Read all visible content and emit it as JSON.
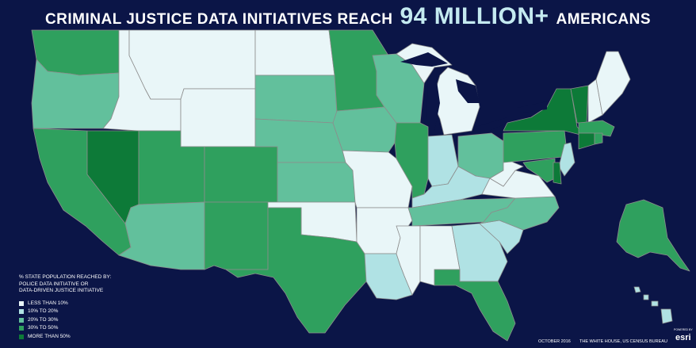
{
  "title": {
    "before": "CRIMINAL JUSTICE DATA INITIATIVES REACH",
    "highlight": "94 MILLION+",
    "after": "AMERICANS"
  },
  "legend": {
    "heading": [
      "% STATE POPULATION REACHED BY:",
      "POLICE DATA INITIATIVE OR",
      "DATA-DRIVEN JUSTICE INITIATIVE"
    ],
    "items": [
      {
        "label": "LESS THAN 10%",
        "color": "#e9f6f8"
      },
      {
        "label": "10% TO 20%",
        "color": "#b0e2e4"
      },
      {
        "label": "20% TO 30%",
        "color": "#62c09c"
      },
      {
        "label": "30% TO 50%",
        "color": "#2fa05e"
      },
      {
        "label": "MORE THAN 50%",
        "color": "#0d7a38"
      }
    ]
  },
  "footer": {
    "date": "OCTOBER 2016",
    "source": "THE WHITE HOUSE, US CENSUS BUREAU",
    "logo_small": "POWERED BY",
    "logo": "esri"
  },
  "colors": {
    "background": "#0b1547",
    "border": "#8c8c8c"
  },
  "map_data": {
    "type": "choropleth",
    "categories": [
      "LESS THAN 10%",
      "10% TO 20%",
      "20% TO 30%",
      "30% TO 50%",
      "MORE THAN 50%"
    ],
    "states": {
      "WA": 3,
      "OR": 2,
      "CA": 3,
      "NV": 4,
      "ID": 0,
      "MT": 0,
      "WY": 0,
      "UT": 3,
      "AZ": 2,
      "CO": 3,
      "NM": 3,
      "ND": 0,
      "SD": 2,
      "NE": 2,
      "KS": 2,
      "OK": 0,
      "TX": 3,
      "MN": 3,
      "IA": 2,
      "MO": 0,
      "AR": 0,
      "LA": 1,
      "WI": 2,
      "IL": 3,
      "MI": 0,
      "IN": 1,
      "OH": 2,
      "KY": 1,
      "TN": 2,
      "MS": 0,
      "AL": 0,
      "GA": 1,
      "FL": 3,
      "SC": 1,
      "NC": 2,
      "VA": 0,
      "WV": 0,
      "PA": 3,
      "NY": 4,
      "VT": 4,
      "NH": 0,
      "ME": 0,
      "MA": 3,
      "CT": 4,
      "RI": 3,
      "NJ": 1,
      "DE": 4,
      "MD": 3,
      "AK": 3,
      "HI": 1
    }
  }
}
